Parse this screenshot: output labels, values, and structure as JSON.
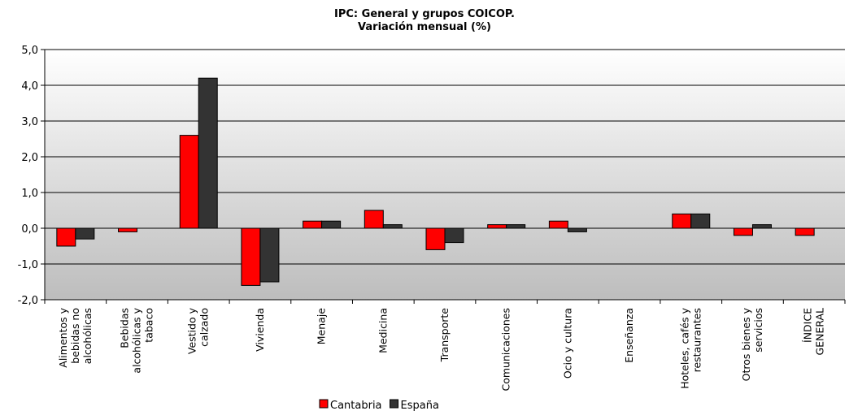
{
  "chart_data": {
    "type": "bar",
    "title": [
      "IPC: General y grupos COICOP.",
      "Variación mensual (%)"
    ],
    "categories": [
      [
        "Alimentos y",
        "bebidas no",
        "alcohólicas"
      ],
      [
        "Bebidas",
        "alcohólicas y",
        "tabaco"
      ],
      [
        "Vestido y",
        "calzado"
      ],
      [
        "Vivienda"
      ],
      [
        "Menaje"
      ],
      [
        "Medicina"
      ],
      [
        "Transporte"
      ],
      [
        "Comunicaciones"
      ],
      [
        "Ocio y cultura"
      ],
      [
        "Enseñanza"
      ],
      [
        "Hoteles, cafés y",
        "restaurantes"
      ],
      [
        "Otros bienes y",
        "servicios"
      ],
      [
        "ÍNDICE",
        "GENERAL"
      ]
    ],
    "series": [
      {
        "name": "Cantabria",
        "color": "#ff0000",
        "values": [
          -0.5,
          -0.1,
          2.6,
          -1.6,
          0.2,
          0.5,
          -0.6,
          0.1,
          0.2,
          0.0,
          0.4,
          -0.2,
          -0.2
        ]
      },
      {
        "name": "España",
        "color": "#333333",
        "values": [
          -0.3,
          0.0,
          4.2,
          -1.5,
          0.2,
          0.1,
          -0.4,
          0.1,
          -0.1,
          0.0,
          0.4,
          0.1,
          0.0
        ]
      }
    ],
    "ylim": [
      -2.0,
      5.0
    ],
    "yticks": [
      "5,0",
      "4,0",
      "3,0",
      "2,0",
      "1,0",
      "0,0",
      "-1,0",
      "-2,0"
    ],
    "ytick_values": [
      5,
      4,
      3,
      2,
      1,
      0,
      -1,
      -2
    ],
    "grid": true,
    "legend": "bottom",
    "background": "gradient-gray"
  }
}
